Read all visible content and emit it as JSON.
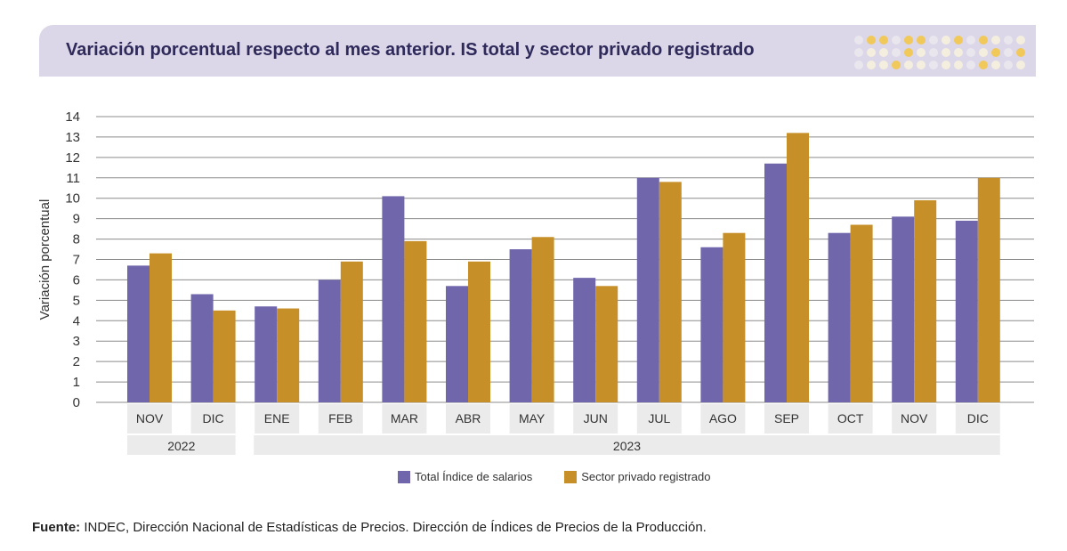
{
  "header": {
    "title": "Variación porcentual respecto al mes anterior. IS total y sector privado registrado"
  },
  "colors": {
    "header_bg": "#dcd6e9",
    "title": "#2e2a5a",
    "series_total": "#6f66ac",
    "series_privado": "#c78f27",
    "dot_gold": "#f0c95a",
    "dot_light": "#f4eedf",
    "dot_gray": "#e9e6ee"
  },
  "chart_data": {
    "type": "bar",
    "categories": [
      "NOV",
      "DIC",
      "ENE",
      "FEB",
      "MAR",
      "ABR",
      "MAY",
      "JUN",
      "JUL",
      "AGO",
      "SEP",
      "OCT",
      "NOV",
      "DIC"
    ],
    "year_groups": [
      {
        "label": "2022",
        "count": 2
      },
      {
        "label": "2023",
        "count": 12
      }
    ],
    "series": [
      {
        "name": "Total Índice de salarios",
        "values": [
          6.7,
          5.3,
          4.7,
          6.0,
          10.1,
          5.7,
          7.5,
          6.1,
          11.0,
          7.6,
          11.7,
          8.3,
          9.1,
          8.9
        ]
      },
      {
        "name": "Sector privado registrado",
        "values": [
          7.3,
          4.5,
          4.6,
          6.9,
          7.9,
          6.9,
          8.1,
          5.7,
          10.8,
          8.3,
          13.2,
          8.7,
          9.9,
          11.0
        ]
      }
    ],
    "ylabel": "Variación porcentual",
    "ylim": [
      0,
      14
    ],
    "yticks": [
      0,
      1,
      2,
      3,
      4,
      5,
      6,
      7,
      8,
      9,
      10,
      11,
      12,
      13,
      14
    ],
    "grid": true,
    "legend": "bottom-center"
  },
  "source": {
    "label": "Fuente:",
    "text": " INDEC, Dirección Nacional de Estadísticas de Precios. Dirección de Índices de Precios de la Producción."
  }
}
